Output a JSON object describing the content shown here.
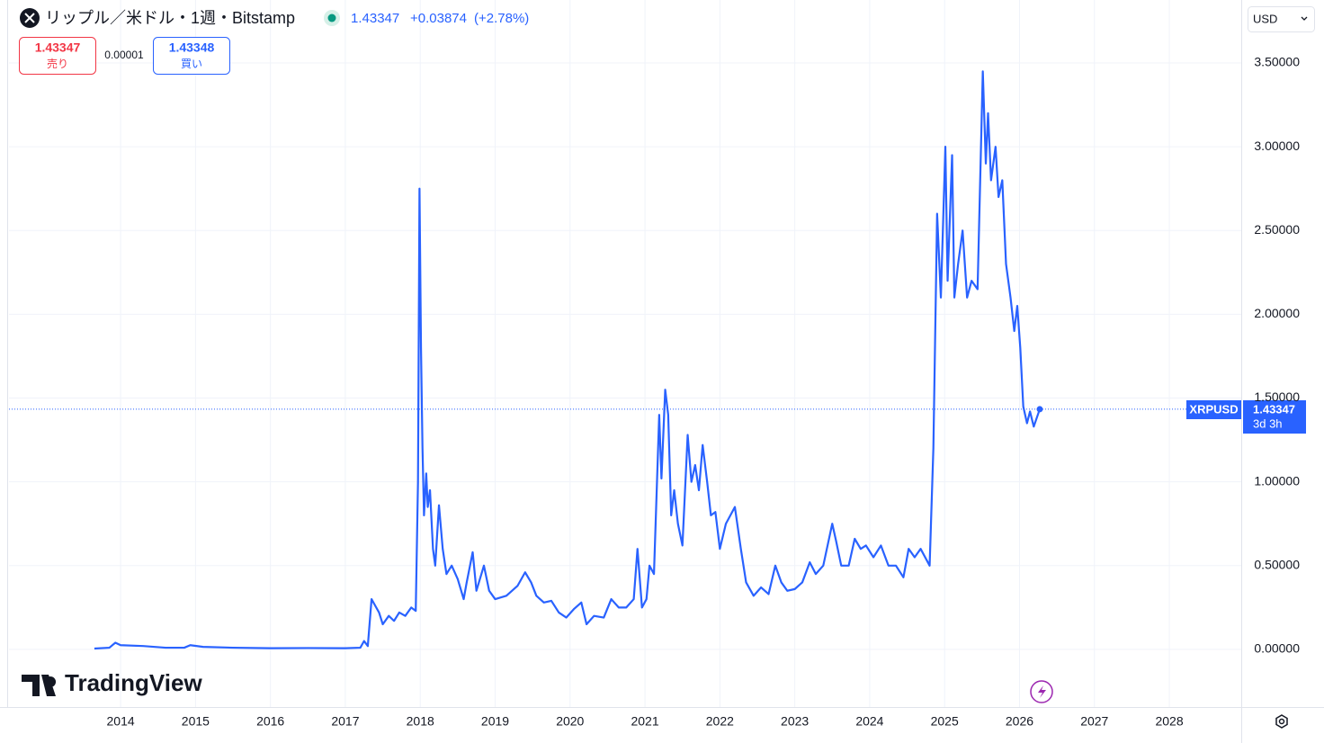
{
  "chart_data": {
    "type": "line",
    "title": "リップル／米ドル・1週・Bitstamp",
    "quote": {
      "price": "1.43347",
      "change": "+0.03874",
      "change_pct": "(+2.78%)"
    },
    "sell": {
      "price": "1.43347",
      "label": "売り"
    },
    "spread": "0.00001",
    "buy": {
      "price": "1.43348",
      "label": "買い"
    },
    "currency": "USD",
    "price_tag": "1.43347",
    "countdown": "3d 3h",
    "brand": "TradingView",
    "x": [
      2013.65,
      2013.85,
      2013.93,
      2014.0,
      2014.3,
      2014.6,
      2014.85,
      2014.93,
      2015.1,
      2015.5,
      2016.0,
      2016.5,
      2017.0,
      2017.2,
      2017.25,
      2017.3,
      2017.35,
      2017.4,
      2017.45,
      2017.5,
      2017.58,
      2017.65,
      2017.72,
      2017.8,
      2017.88,
      2017.94,
      2017.97,
      2017.99,
      2018.01,
      2018.03,
      2018.05,
      2018.08,
      2018.1,
      2018.13,
      2018.17,
      2018.2,
      2018.25,
      2018.3,
      2018.35,
      2018.42,
      2018.5,
      2018.58,
      2018.62,
      2018.7,
      2018.75,
      2018.85,
      2018.92,
      2019.0,
      2019.15,
      2019.3,
      2019.4,
      2019.48,
      2019.55,
      2019.65,
      2019.75,
      2019.85,
      2019.95,
      2020.05,
      2020.15,
      2020.22,
      2020.32,
      2020.45,
      2020.55,
      2020.65,
      2020.75,
      2020.85,
      2020.9,
      2020.96,
      2021.02,
      2021.06,
      2021.12,
      2021.19,
      2021.22,
      2021.27,
      2021.31,
      2021.35,
      2021.39,
      2021.44,
      2021.5,
      2021.57,
      2021.62,
      2021.67,
      2021.72,
      2021.77,
      2021.83,
      2021.88,
      2021.94,
      2022.0,
      2022.08,
      2022.2,
      2022.28,
      2022.35,
      2022.45,
      2022.55,
      2022.65,
      2022.74,
      2022.82,
      2022.9,
      2023.0,
      2023.1,
      2023.2,
      2023.28,
      2023.38,
      2023.5,
      2023.55,
      2023.62,
      2023.72,
      2023.8,
      2023.88,
      2023.95,
      2024.05,
      2024.15,
      2024.25,
      2024.35,
      2024.45,
      2024.52,
      2024.6,
      2024.68,
      2024.8,
      2024.85,
      2024.9,
      2024.95,
      2025.01,
      2025.04,
      2025.1,
      2025.13,
      2025.18,
      2025.24,
      2025.3,
      2025.36,
      2025.44,
      2025.51,
      2025.55,
      2025.58,
      2025.62,
      2025.68,
      2025.72,
      2025.77,
      2025.82,
      2025.88,
      2025.93,
      2025.97,
      2026.01,
      2026.05,
      2026.1,
      2026.14,
      2026.19,
      2026.27
    ],
    "series": [
      {
        "name": "XRPUSD",
        "color": "#2962ff",
        "values": [
          0.005,
          0.01,
          0.04,
          0.025,
          0.02,
          0.01,
          0.01,
          0.025,
          0.015,
          0.01,
          0.007,
          0.008,
          0.007,
          0.01,
          0.05,
          0.02,
          0.3,
          0.26,
          0.22,
          0.15,
          0.2,
          0.17,
          0.22,
          0.2,
          0.25,
          0.23,
          1.0,
          2.75,
          1.8,
          1.2,
          0.8,
          1.05,
          0.85,
          0.95,
          0.6,
          0.5,
          0.86,
          0.6,
          0.45,
          0.5,
          0.42,
          0.3,
          0.4,
          0.58,
          0.35,
          0.5,
          0.35,
          0.3,
          0.32,
          0.38,
          0.46,
          0.4,
          0.32,
          0.28,
          0.29,
          0.22,
          0.19,
          0.24,
          0.28,
          0.15,
          0.2,
          0.19,
          0.3,
          0.25,
          0.25,
          0.3,
          0.6,
          0.25,
          0.3,
          0.5,
          0.45,
          1.4,
          1.02,
          1.55,
          1.4,
          0.8,
          0.95,
          0.75,
          0.62,
          1.28,
          1.0,
          1.1,
          0.95,
          1.22,
          1.0,
          0.8,
          0.82,
          0.6,
          0.75,
          0.85,
          0.6,
          0.4,
          0.32,
          0.37,
          0.33,
          0.5,
          0.4,
          0.35,
          0.36,
          0.4,
          0.52,
          0.45,
          0.5,
          0.75,
          0.65,
          0.5,
          0.5,
          0.66,
          0.6,
          0.62,
          0.55,
          0.62,
          0.5,
          0.5,
          0.43,
          0.6,
          0.55,
          0.6,
          0.5,
          1.2,
          2.6,
          2.1,
          3.0,
          2.2,
          2.95,
          2.1,
          2.3,
          2.5,
          2.1,
          2.2,
          2.15,
          3.45,
          2.9,
          3.2,
          2.8,
          3.0,
          2.7,
          2.8,
          2.3,
          2.1,
          1.9,
          2.05,
          1.8,
          1.45,
          1.35,
          1.42,
          1.33,
          1.43347
        ]
      }
    ],
    "xlim": [
      2012.51,
      2028.96
    ],
    "xticks": [
      2014,
      2015,
      2016,
      2017,
      2018,
      2019,
      2020,
      2021,
      2022,
      2023,
      2024,
      2025,
      2026,
      2027,
      2028
    ],
    "ylim": [
      -0.344,
      3.876
    ],
    "yticks": [
      {
        "value": 0,
        "label": "0.00000"
      },
      {
        "value": 0.5,
        "label": "0.50000"
      },
      {
        "value": 1,
        "label": "1.00000"
      },
      {
        "value": 1.5,
        "label": "1.50000"
      },
      {
        "value": 2,
        "label": "2.00000"
      },
      {
        "value": 2.5,
        "label": "2.50000"
      },
      {
        "value": 3,
        "label": "3.00000"
      },
      {
        "value": 3.5,
        "label": "3.50000"
      }
    ],
    "grid": true
  }
}
